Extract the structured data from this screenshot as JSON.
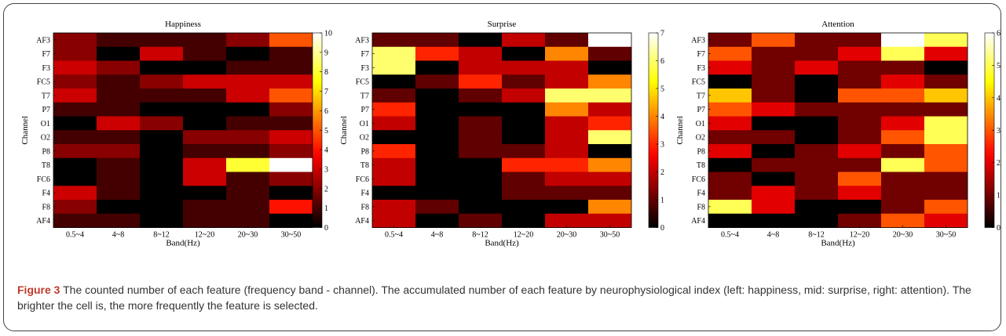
{
  "chart_data": [
    {
      "type": "heatmap",
      "title": "Happiness",
      "xlabel": "Band(Hz)",
      "ylabel": "Channel",
      "x_categories": [
        "0.5~4",
        "4~8",
        "8~12",
        "12~20",
        "20~30",
        "30~50"
      ],
      "y_categories": [
        "AF3",
        "F7",
        "F3",
        "FC5",
        "T7",
        "P7",
        "O1",
        "O2",
        "P8",
        "T8",
        "FC6",
        "F4",
        "F8",
        "AF4"
      ],
      "values": [
        [
          2,
          1,
          1,
          1,
          2,
          5
        ],
        [
          2,
          0,
          3,
          1,
          0,
          1
        ],
        [
          3,
          2,
          0,
          0,
          1,
          1
        ],
        [
          2,
          1,
          2,
          3,
          3,
          3
        ],
        [
          3,
          1,
          1,
          1,
          3,
          5
        ],
        [
          1,
          1,
          0,
          0,
          0,
          2
        ],
        [
          0,
          3,
          2,
          0,
          1,
          1
        ],
        [
          1,
          1,
          0,
          2,
          2,
          3
        ],
        [
          2,
          2,
          0,
          1,
          1,
          2
        ],
        [
          0,
          1,
          0,
          3,
          8,
          10
        ],
        [
          0,
          1,
          0,
          3,
          1,
          2
        ],
        [
          3,
          1,
          0,
          0,
          1,
          0
        ],
        [
          2,
          0,
          0,
          1,
          1,
          4
        ],
        [
          1,
          1,
          0,
          1,
          1,
          0
        ]
      ],
      "colorbar": {
        "min": 0,
        "max": 10,
        "ticks": [
          0,
          1,
          2,
          3,
          4,
          5,
          6,
          7,
          8,
          9,
          10
        ]
      },
      "colormap": "hot"
    },
    {
      "type": "heatmap",
      "title": "Surprise",
      "xlabel": "Band(Hz)",
      "ylabel": "Channel",
      "x_categories": [
        "0.5~4",
        "4~8",
        "8~12",
        "12~20",
        "20~30",
        "30~50"
      ],
      "y_categories": [
        "AF3",
        "F7",
        "F3",
        "FC5",
        "T7",
        "P7",
        "O1",
        "O2",
        "P8",
        "T8",
        "FC6",
        "F4",
        "F8",
        "AF4"
      ],
      "values": [
        [
          1,
          1,
          0,
          2,
          1,
          7
        ],
        [
          6,
          3,
          2,
          0,
          4,
          1
        ],
        [
          6,
          0,
          2,
          2,
          2,
          0
        ],
        [
          0,
          1,
          3,
          1,
          2,
          4
        ],
        [
          1,
          0,
          1,
          2,
          6,
          6
        ],
        [
          3,
          0,
          0,
          0,
          4,
          2
        ],
        [
          2,
          0,
          1,
          0,
          2,
          3
        ],
        [
          0,
          0,
          1,
          0,
          2,
          6
        ],
        [
          3,
          0,
          1,
          1,
          2,
          0
        ],
        [
          2,
          0,
          0,
          3,
          3,
          4
        ],
        [
          2,
          0,
          0,
          1,
          2,
          2
        ],
        [
          0,
          0,
          0,
          1,
          1,
          1
        ],
        [
          2,
          1,
          0,
          0,
          0,
          4
        ],
        [
          2,
          0,
          1,
          0,
          2,
          2
        ]
      ],
      "colorbar": {
        "min": 0,
        "max": 7,
        "ticks": [
          0,
          1,
          2,
          3,
          4,
          5,
          6,
          7
        ]
      },
      "colormap": "hot"
    },
    {
      "type": "heatmap",
      "title": "Attention",
      "xlabel": "Band(Hz)",
      "ylabel": "Channel",
      "x_categories": [
        "0.5~4",
        "4~8",
        "8~12",
        "12~20",
        "20~30",
        "30~50"
      ],
      "y_categories": [
        "AF3",
        "F7",
        "F3",
        "FC5",
        "T7",
        "P7",
        "O1",
        "O2",
        "P8",
        "T8",
        "FC6",
        "F4",
        "F8",
        "AF4"
      ],
      "values": [
        [
          1,
          3,
          1,
          1,
          6,
          5
        ],
        [
          3,
          1,
          1,
          2,
          5,
          2
        ],
        [
          2,
          1,
          2,
          1,
          1,
          0
        ],
        [
          0,
          1,
          0,
          1,
          2,
          1
        ],
        [
          4,
          1,
          0,
          3,
          3,
          4
        ],
        [
          3,
          2,
          1,
          1,
          1,
          1
        ],
        [
          2,
          0,
          0,
          1,
          2,
          5
        ],
        [
          1,
          1,
          0,
          1,
          3,
          5
        ],
        [
          2,
          0,
          1,
          2,
          1,
          3
        ],
        [
          0,
          1,
          1,
          1,
          5,
          3
        ],
        [
          1,
          0,
          1,
          3,
          1,
          1
        ],
        [
          1,
          2,
          1,
          2,
          1,
          1
        ],
        [
          5,
          2,
          0,
          0,
          1,
          3
        ],
        [
          0,
          0,
          0,
          1,
          3,
          2
        ]
      ],
      "colorbar": {
        "min": 0,
        "max": 6,
        "ticks": [
          0,
          1,
          2,
          3,
          4,
          5,
          6
        ]
      },
      "colormap": "hot"
    }
  ],
  "caption": {
    "label": "Figure 3",
    "text": " The counted number of each feature (frequency band - channel). The accumulated number of each feature by neurophysiological index (left: happiness, mid: surprise, right: attention). The brighter the cell is, the more frequently the feature is selected."
  }
}
